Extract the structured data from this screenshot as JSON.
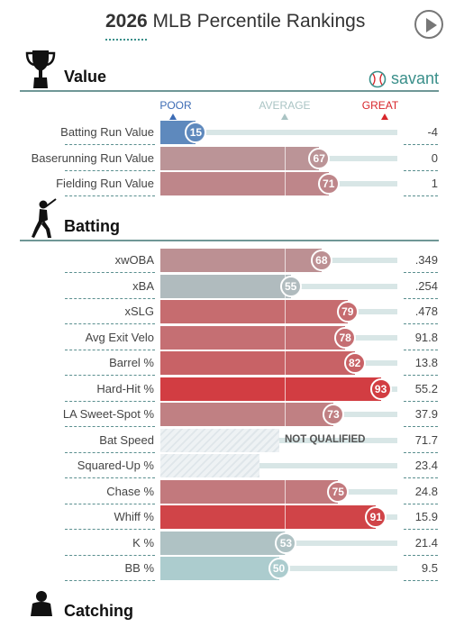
{
  "header": {
    "title_year": "2026",
    "title_rest": " MLB Percentile Rankings"
  },
  "brand": {
    "name": "savant",
    "color": "#3a8f8a"
  },
  "scale": {
    "poor": "POOR",
    "average": "AVERAGE",
    "great": "GREAT"
  },
  "colors": {
    "poor": "#3d6cb5",
    "great": "#d8262b"
  },
  "sections": [
    {
      "id": "value",
      "label": "Value",
      "icon": "trophy-icon"
    },
    {
      "id": "batting",
      "label": "Batting",
      "icon": "batter-icon"
    },
    {
      "id": "catching",
      "label": "Catching",
      "icon": "catcher-icon"
    }
  ],
  "chart_data": {
    "type": "bar",
    "title": "2026 MLB Percentile Rankings",
    "xlim": [
      0,
      100
    ],
    "groups": [
      {
        "name": "Value",
        "metrics": [
          {
            "label": "Batting Run Value",
            "percentile": 15,
            "value": "-4"
          },
          {
            "label": "Baserunning Run Value",
            "percentile": 67,
            "value": "0"
          },
          {
            "label": "Fielding Run Value",
            "percentile": 71,
            "value": "1"
          }
        ]
      },
      {
        "name": "Batting",
        "metrics": [
          {
            "label": "xwOBA",
            "percentile": 68,
            "value": ".349"
          },
          {
            "label": "xBA",
            "percentile": 55,
            "value": ".254"
          },
          {
            "label": "xSLG",
            "percentile": 79,
            "value": ".478"
          },
          {
            "label": "Avg Exit Velo",
            "percentile": 78,
            "value": "91.8"
          },
          {
            "label": "Barrel %",
            "percentile": 82,
            "value": "13.8"
          },
          {
            "label": "Hard-Hit %",
            "percentile": 93,
            "value": "55.2"
          },
          {
            "label": "LA Sweet-Spot %",
            "percentile": 73,
            "value": "37.9"
          },
          {
            "label": "Bat Speed",
            "percentile": null,
            "value": "71.7",
            "note": "NOT QUALIFIED",
            "shade": 0.5
          },
          {
            "label": "Squared-Up %",
            "percentile": null,
            "value": "23.4",
            "shade": 0.42
          },
          {
            "label": "Chase %",
            "percentile": 75,
            "value": "24.8"
          },
          {
            "label": "Whiff %",
            "percentile": 91,
            "value": "15.9"
          },
          {
            "label": "K %",
            "percentile": 53,
            "value": "21.4"
          },
          {
            "label": "BB %",
            "percentile": 50,
            "value": "9.5"
          }
        ]
      }
    ]
  }
}
